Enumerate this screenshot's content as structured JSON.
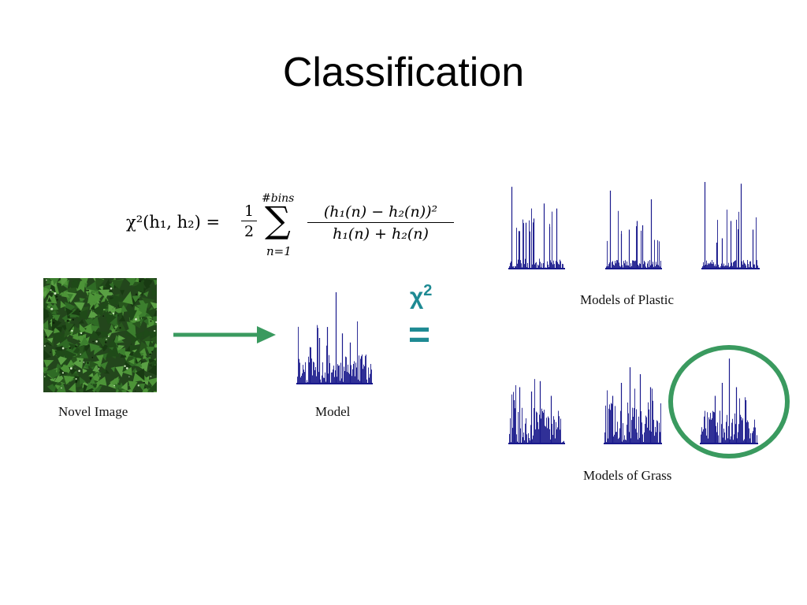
{
  "slide": {
    "title": "Classification"
  },
  "formula": {
    "lhs": "χ²(h₁, h₂) =",
    "half_num": "1",
    "half_den": "2",
    "sum_top": "#bins",
    "sum_symbol": "∑",
    "sum_bottom": "n=1",
    "frac_num": "(h₁(n) − h₂(n))²",
    "frac_den": "h₁(n) + h₂(n)"
  },
  "labels": {
    "novel_image": "Novel Image",
    "model": "Model",
    "models_plastic": "Models of Plastic",
    "models_grass": "Models of Grass",
    "chi_symbol": "χ",
    "chi_exp": "2",
    "equals": "="
  },
  "colors": {
    "histogram": "#1a1a8c",
    "arrow": "#3a9a5f",
    "highlight_circle": "#3a9a5f",
    "chi_text": "#1e8a93",
    "grass_base": "#2d5a24"
  },
  "icons": {
    "arrow": "right-arrow-icon",
    "highlight": "circle-highlight"
  }
}
